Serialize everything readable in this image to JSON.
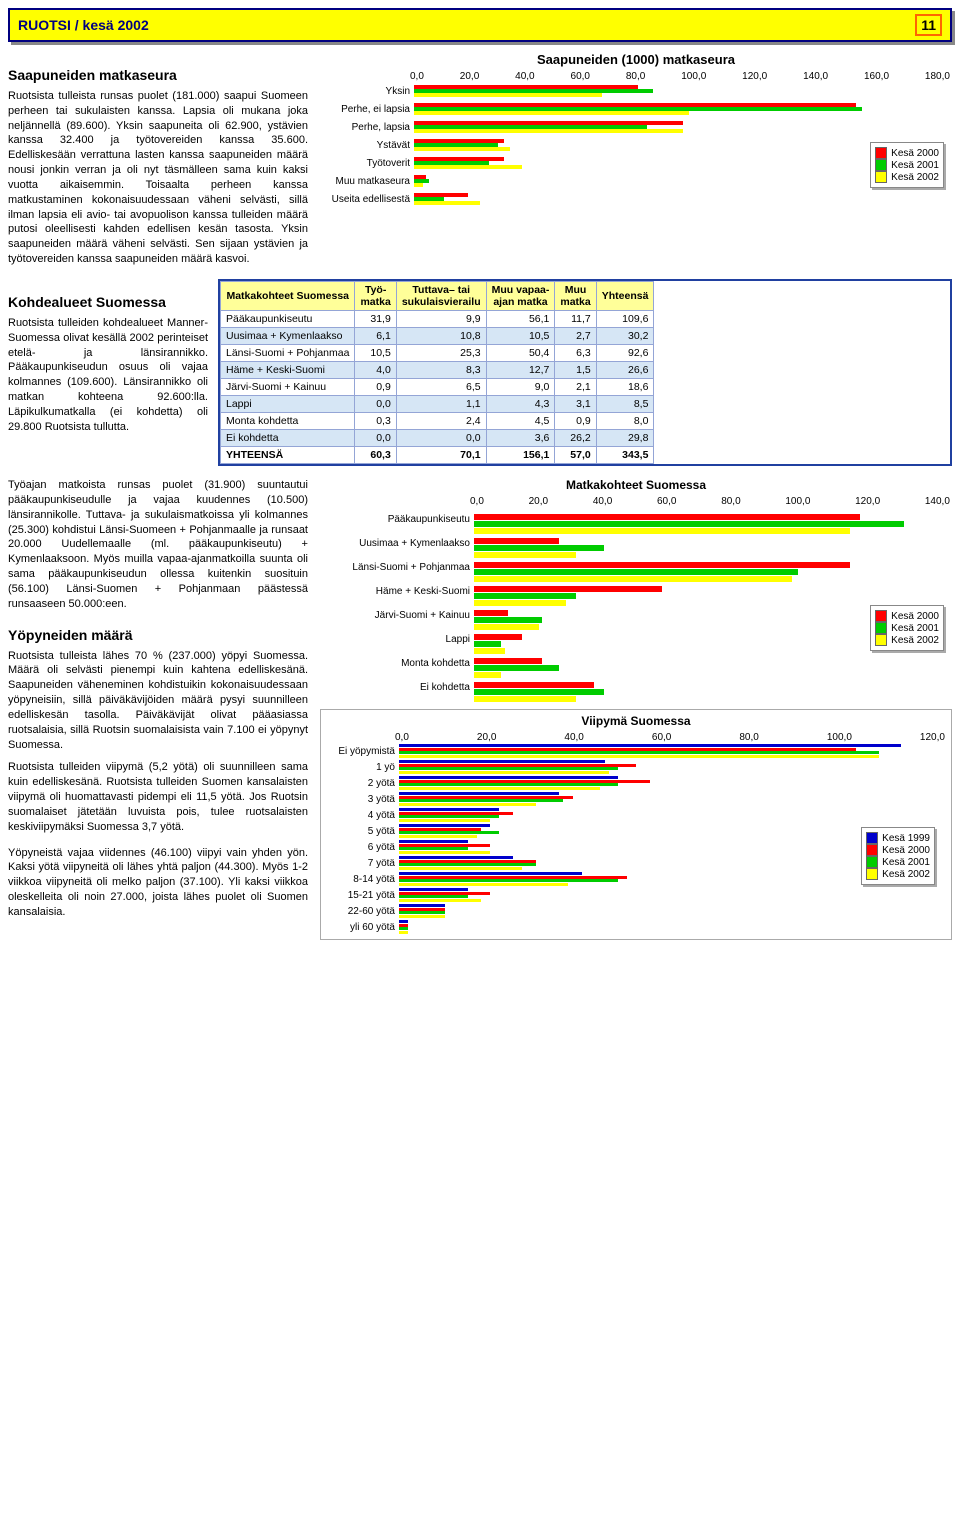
{
  "header": {
    "title": "RUOTSI / kesä 2002",
    "page": "11"
  },
  "sections": {
    "s1_title": "Saapuneiden matkaseura",
    "s1_text": "Ruotsista tulleista runsas puolet (181.000) saapui Suomeen perheen tai sukulaisten kanssa. Lapsia oli mukana joka neljännellä (89.600). Yksin saapuneita oli 62.900, ystävien kanssa 32.400 ja työtovereiden kanssa 35.600. Edelliskesään verrattuna lasten kanssa saapuneiden määrä nousi jonkin verran ja oli nyt täsmälleen sama kuin kaksi vuotta aikaisemmin. Toisaalta perheen kanssa matkustaminen kokonaisuudessaan väheni selvästi, sillä ilman lapsia eli avio- tai avopuolison kanssa tulleiden määrä putosi oleellisesti kahden edellisen kesän tasosta. Yksin saapuneiden määrä väheni selvästi. Sen sijaan ystävien ja työtovereiden kanssa saapuneiden määrä kasvoi.",
    "s2_title": "Kohdealueet Suomessa",
    "s2_text": "Ruotsista tulleiden kohdealueet Manner-Suomessa olivat kesällä 2002 perinteiset etelä- ja länsirannikko. Pääkaupunkiseudun osuus oli vajaa kolmannes (109.600). Länsirannikko oli matkan kohteena 92.600:lla. Läpikulkumatkalla (ei kohdetta) oli 29.800 Ruotsista tullutta.",
    "s3_text": "Työajan matkoista runsas puolet (31.900) suuntautui pääkaupunkiseudulle ja vajaa kuudennes (10.500) länsirannikolle. Tuttava- ja sukulaismatkoissa yli kolmannes (25.300) kohdistui Länsi-Suomeen + Pohjanmaalle ja runsaat 20.000 Uudellemaalle (ml. pääkaupunkiseutu) + Kymenlaaksoon. Myös muilla vapaa-ajanmatkoilla suunta oli sama pääkaupunkiseudun ollessa kuitenkin suosituin (56.100) Länsi-Suomen + Pohjanmaan päästessä runsaaseen 50.000:een.",
    "s4_title": "Yöpyneiden määrä",
    "s4_text": "Ruotsista tulleista lähes 70 % (237.000) yöpyi Suomessa. Määrä oli selvästi pienempi kuin kahtena edelliskesänä. Saapuneiden väheneminen kohdistuikin kokonaisuudessaan yöpyneisiin, sillä päiväkävijöiden määrä pysyi suunnilleen edelliskesän tasolla. Päiväkävijät olivat pääasiassa ruotsalaisia, sillä Ruotsin suomalaisista vain 7.100 ei yöpynyt Suomessa.",
    "s5_text": "Ruotsista tulleiden viipymä (5,2 yötä) oli suunnilleen sama kuin edelliskesänä. Ruotsista tulleiden Suomen kansalaisten viipymä oli huomattavasti pidempi eli 11,5 yötä. Jos Ruotsin suomalaiset jätetään luvuista pois, tulee ruotsalaisten keskiviipymäksi Suomessa 3,7 yötä.",
    "s6_text": "Yöpyneistä vajaa viidennes (46.100) viipyi vain yhden yön. Kaksi yötä viipyneitä oli lähes yhtä paljon (44.300). Myös 1-2 viikkoa viipyneitä oli melko paljon (37.100). Yli kaksi viikkoa oleskelleita oli noin 27.000, joista lähes puolet oli Suomen kansalaisia."
  },
  "chart1": {
    "title": "Saapuneiden (1000) matkaseura",
    "xmax": 180,
    "xticks": [
      "0,0",
      "20,0",
      "40,0",
      "60,0",
      "80,0",
      "100,0",
      "120,0",
      "140,0",
      "160,0",
      "180,0"
    ],
    "categories": [
      "Yksin",
      "Perhe, ei lapsia",
      "Perhe, lapsia",
      "Ystävät",
      "Työtoverit",
      "Muu matkaseura",
      "Useita edellisestä"
    ],
    "series": [
      {
        "label": "Kesä 2000",
        "color": "#ff0000",
        "values": [
          75,
          148,
          90,
          30,
          30,
          4,
          18
        ]
      },
      {
        "label": "Kesä 2001",
        "color": "#00cc00",
        "values": [
          80,
          150,
          78,
          28,
          25,
          5,
          10
        ]
      },
      {
        "label": "Kesä 2002",
        "color": "#ffff00",
        "values": [
          63,
          92,
          90,
          32,
          36,
          3,
          22
        ]
      }
    ]
  },
  "table": {
    "headers": [
      "Matkakohteet Suomessa",
      "Työ-\nmatka",
      "Tuttava– tai\nsukulaisvierailu",
      "Muu vapaa-\najan matka",
      "Muu\nmatka",
      "Yhteensä"
    ],
    "rows": [
      [
        "Pääkaupunkiseutu",
        "31,9",
        "9,9",
        "56,1",
        "11,7",
        "109,6"
      ],
      [
        "Uusimaa + Kymenlaakso",
        "6,1",
        "10,8",
        "10,5",
        "2,7",
        "30,2"
      ],
      [
        "Länsi-Suomi + Pohjanmaa",
        "10,5",
        "25,3",
        "50,4",
        "6,3",
        "92,6"
      ],
      [
        "Häme + Keski-Suomi",
        "4,0",
        "8,3",
        "12,7",
        "1,5",
        "26,6"
      ],
      [
        "Järvi-Suomi + Kainuu",
        "0,9",
        "6,5",
        "9,0",
        "2,1",
        "18,6"
      ],
      [
        "Lappi",
        "0,0",
        "1,1",
        "4,3",
        "3,1",
        "8,5"
      ],
      [
        "Monta kohdetta",
        "0,3",
        "2,4",
        "4,5",
        "0,9",
        "8,0"
      ],
      [
        "Ei kohdetta",
        "0,0",
        "0,0",
        "3,6",
        "26,2",
        "29,8"
      ],
      [
        "YHTEENSÄ",
        "60,3",
        "70,1",
        "156,1",
        "57,0",
        "343,5"
      ]
    ]
  },
  "chart2": {
    "title": "Matkakohteet Suomessa",
    "xmax": 140,
    "xticks": [
      "0,0",
      "20,0",
      "40,0",
      "60,0",
      "80,0",
      "100,0",
      "120,0",
      "140,0"
    ],
    "categories": [
      "Pääkaupunkiseutu",
      "Uusimaa + Kymenlaakso",
      "Länsi-Suomi + Pohjanmaa",
      "Häme + Keski-Suomi",
      "Järvi-Suomi + Kainuu",
      "Lappi",
      "Monta kohdetta",
      "Ei kohdetta"
    ],
    "series": [
      {
        "label": "Kesä 2000",
        "color": "#ff0000",
        "values": [
          113,
          25,
          110,
          55,
          10,
          14,
          20,
          35
        ]
      },
      {
        "label": "Kesä 2001",
        "color": "#00cc00",
        "values": [
          126,
          38,
          95,
          30,
          20,
          8,
          25,
          38
        ]
      },
      {
        "label": "Kesä 2002",
        "color": "#ffff00",
        "values": [
          110,
          30,
          93,
          27,
          19,
          9,
          8,
          30
        ]
      }
    ]
  },
  "chart3": {
    "title": "Viipymä Suomessa",
    "xmax": 120,
    "xticks": [
      "0,0",
      "20,0",
      "40,0",
      "60,0",
      "80,0",
      "100,0",
      "120,0"
    ],
    "categories": [
      "Ei yöpymistä",
      "1 yö",
      "2 yötä",
      "3 yötä",
      "4 yötä",
      "5 yötä",
      "6 yötä",
      "7 yötä",
      "8-14 yötä",
      "15-21 yötä",
      "22-60 yötä",
      "yli 60 yötä"
    ],
    "series": [
      {
        "label": "Kesä 1999",
        "color": "#0000cc",
        "values": [
          110,
          45,
          48,
          35,
          22,
          20,
          15,
          25,
          40,
          15,
          10,
          2
        ]
      },
      {
        "label": "Kesä 2000",
        "color": "#ff0000",
        "values": [
          100,
          52,
          55,
          38,
          25,
          18,
          20,
          30,
          50,
          20,
          10,
          2
        ]
      },
      {
        "label": "Kesä 2001",
        "color": "#00cc00",
        "values": [
          105,
          48,
          48,
          36,
          22,
          22,
          15,
          30,
          48,
          15,
          10,
          2
        ]
      },
      {
        "label": "Kesä 2002",
        "color": "#ffff00",
        "values": [
          105,
          46,
          44,
          30,
          20,
          17,
          20,
          27,
          37,
          18,
          10,
          2
        ]
      }
    ]
  }
}
